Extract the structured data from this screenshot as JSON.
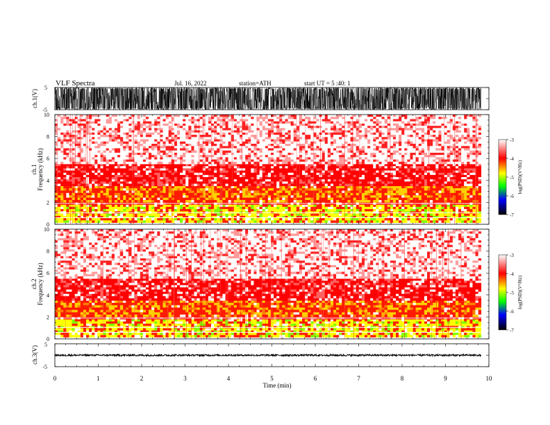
{
  "header": {
    "title": "VLF Spectra",
    "date": "Jul. 16, 2022",
    "station": "station=ATH",
    "start": "start UT =  5 :40: 1"
  },
  "chart_data": [
    {
      "type": "line",
      "name": "ch1-waveform",
      "ylabel": "ch.1(V)",
      "yticks": [
        "5",
        "-5"
      ],
      "ylim": [
        -5,
        5
      ],
      "xlim": [
        0,
        10
      ],
      "amplitude": 5,
      "x_end": 9.82
    },
    {
      "type": "heatmap",
      "name": "ch1-spectrogram",
      "ylabel": "ch.1\nFrequency (kHz)",
      "yticks": [
        "0",
        "2",
        "4",
        "6",
        "8",
        "10"
      ],
      "ylim": [
        0,
        10
      ],
      "xlim": [
        0,
        10
      ],
      "x_end": 9.82,
      "bands_khz": [
        {
          "from": 0.0,
          "to": 0.15,
          "level": "white"
        },
        {
          "from": 0.15,
          "to": 1.8,
          "level": "yellow-green"
        },
        {
          "from": 1.8,
          "to": 2.0,
          "level": "red"
        },
        {
          "from": 2.0,
          "to": 3.5,
          "level": "orange-yellow"
        },
        {
          "from": 3.5,
          "to": 5.5,
          "level": "red"
        },
        {
          "from": 5.5,
          "to": 10.0,
          "level": "pink-white"
        }
      ],
      "colorbar": {
        "label": "log(PSD)(V²/Hz)",
        "ticks": [
          "-3",
          "-4",
          "-5",
          "-6",
          "-7"
        ],
        "range": [
          -7,
          -3
        ],
        "colors": [
          "#ffffff",
          "#ff0000",
          "#ffff00",
          "#00ff00",
          "#0000ff",
          "#000000"
        ]
      }
    },
    {
      "type": "heatmap",
      "name": "ch2-spectrogram",
      "ylabel": "ch.2\nFrequency (kHz)",
      "yticks": [
        "0",
        "2",
        "4",
        "6",
        "8",
        "10"
      ],
      "ylim": [
        0,
        10
      ],
      "xlim": [
        0,
        10
      ],
      "x_end": 9.82,
      "bands_khz": [
        {
          "from": 0.0,
          "to": 0.15,
          "level": "white"
        },
        {
          "from": 0.15,
          "to": 1.8,
          "level": "yellow-green"
        },
        {
          "from": 1.8,
          "to": 2.0,
          "level": "red"
        },
        {
          "from": 2.0,
          "to": 3.5,
          "level": "orange-yellow"
        },
        {
          "from": 3.5,
          "to": 5.5,
          "level": "red"
        },
        {
          "from": 5.5,
          "to": 10.0,
          "level": "pink-white"
        }
      ],
      "colorbar": {
        "label": "log(PSD)(V²/Hz)",
        "ticks": [
          "-3",
          "-4",
          "-5",
          "-6",
          "-7"
        ],
        "range": [
          -7,
          -3
        ],
        "colors": [
          "#ffffff",
          "#ff0000",
          "#ffff00",
          "#00ff00",
          "#0000ff",
          "#000000"
        ]
      }
    },
    {
      "type": "line",
      "name": "ch3-waveform",
      "ylabel": "ch.3(V)",
      "yticks": [
        "5",
        "-5"
      ],
      "ylim": [
        -5,
        5
      ],
      "xlim": [
        0,
        10
      ],
      "amplitude": 0.4,
      "offset": 0,
      "x_end": 9.82,
      "xlabel": "Time (min)",
      "xticks": [
        "0",
        "1",
        "2",
        "3",
        "4",
        "5",
        "6",
        "7",
        "8",
        "9",
        "10"
      ]
    }
  ]
}
